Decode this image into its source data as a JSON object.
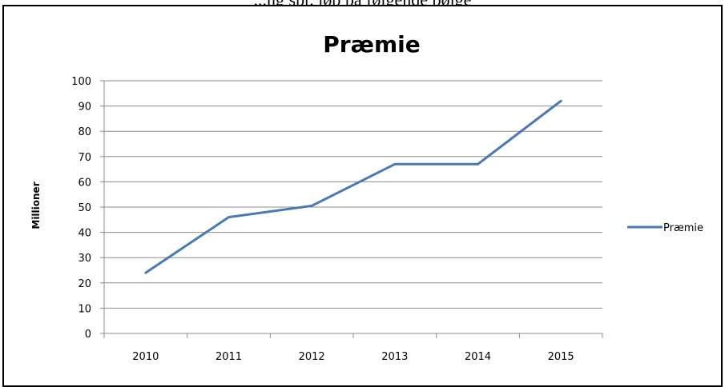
{
  "caption": "...ng spr. løb på følgende bølge",
  "chart_data": {
    "type": "line",
    "title": "Præmie",
    "xlabel": "",
    "ylabel": "Millioner",
    "categories": [
      "2010",
      "2011",
      "2012",
      "2013",
      "2014",
      "2015"
    ],
    "series": [
      {
        "name": "Præmie",
        "values": [
          24,
          46,
          50.5,
          67,
          67,
          92
        ],
        "color": "#4a7ab5"
      }
    ],
    "ylim": [
      0,
      100
    ],
    "yticks": [
      0,
      10,
      20,
      30,
      40,
      50,
      60,
      70,
      80,
      90,
      100
    ],
    "grid": true,
    "legend": "right"
  }
}
